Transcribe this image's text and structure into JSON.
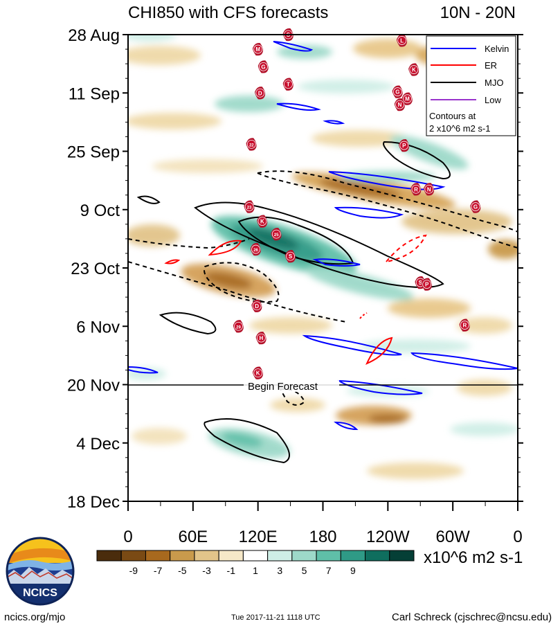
{
  "header": {
    "title": "CHI850 with CFS forecasts",
    "region": "10N - 20N"
  },
  "chart_data": {
    "type": "heatmap",
    "title": "CHI850 with CFS forecasts",
    "subtitle": "10N - 20N",
    "x_ticks": [
      "0",
      "60E",
      "120E",
      "180",
      "120W",
      "60W",
      "0"
    ],
    "x_tick_lon": [
      0,
      60,
      120,
      180,
      240,
      300,
      360
    ],
    "y_ticks": [
      "28 Aug",
      "11 Sep",
      "25 Sep",
      "9 Oct",
      "23 Oct",
      "6 Nov",
      "20 Nov",
      "4 Dec",
      "18 Dec"
    ],
    "y_range": [
      "28 Aug",
      "18 Dec"
    ],
    "x_range": [
      0,
      360
    ],
    "forecast_start": "20 Nov",
    "forecast_label": "Begin Forecast",
    "colorbar": {
      "labels": [
        "-9",
        "-7",
        "-5",
        "-3",
        "-1",
        "1",
        "3",
        "5",
        "7",
        "9"
      ],
      "colors": [
        "#4a2c0c",
        "#7a4a14",
        "#a8691e",
        "#c99a4c",
        "#e2c48a",
        "#f6e8c8",
        "#ffffff",
        "#cfeee6",
        "#9dd9c9",
        "#5fbfa8",
        "#2f9a86",
        "#0f6e5e",
        "#053f36"
      ],
      "units": "x10^6 m2 s-1"
    },
    "legend": {
      "placement": "top-right",
      "entries": [
        {
          "name": "Kelvin",
          "color": "#0000ff"
        },
        {
          "name": "ER",
          "color": "#ff0000"
        },
        {
          "name": "MJO",
          "color": "#000000"
        },
        {
          "name": "Low",
          "color": "#9933cc"
        }
      ],
      "note_lines": [
        "Contours at",
        "2 x10^6 m2 s-1"
      ]
    },
    "storm_markers": [
      {
        "label": "S",
        "lon": 148,
        "date_index": 0.0
      },
      {
        "label": "L",
        "lon": 253,
        "date_index": 0.1
      },
      {
        "label": "M",
        "lon": 120,
        "date_index": 0.25
      },
      {
        "label": "K",
        "lon": 264,
        "date_index": 0.6
      },
      {
        "label": "G",
        "lon": 125,
        "date_index": 0.55
      },
      {
        "label": "T",
        "lon": 148,
        "date_index": 0.85
      },
      {
        "label": "D",
        "lon": 122,
        "date_index": 1.0
      },
      {
        "label": "G",
        "lon": 249,
        "date_index": 0.98
      },
      {
        "label": "M",
        "lon": 258,
        "date_index": 1.1
      },
      {
        "label": "N",
        "lon": 251,
        "date_index": 1.2
      },
      {
        "label": "22",
        "lon": 114,
        "date_index": 1.88
      },
      {
        "label": "P",
        "lon": 255,
        "date_index": 1.9
      },
      {
        "label": "R",
        "lon": 266,
        "date_index": 2.65
      },
      {
        "label": "N",
        "lon": 278,
        "date_index": 2.65
      },
      {
        "label": "23",
        "lon": 112,
        "date_index": 2.95
      },
      {
        "label": "K",
        "lon": 124,
        "date_index": 3.2
      },
      {
        "label": "25",
        "lon": 137,
        "date_index": 3.42
      },
      {
        "label": "26",
        "lon": 118,
        "date_index": 3.68
      },
      {
        "label": "S",
        "lon": 150,
        "date_index": 3.8
      },
      {
        "label": "G",
        "lon": 321,
        "date_index": 2.95
      },
      {
        "label": "S",
        "lon": 270,
        "date_index": 4.25
      },
      {
        "label": "P",
        "lon": 276,
        "date_index": 4.28
      },
      {
        "label": "D",
        "lon": 119,
        "date_index": 4.65
      },
      {
        "label": "29",
        "lon": 102,
        "date_index": 5.0
      },
      {
        "label": "R",
        "lon": 311,
        "date_index": 4.98
      },
      {
        "label": "H",
        "lon": 123,
        "date_index": 5.2
      },
      {
        "label": "K",
        "lon": 120,
        "date_index": 5.8
      }
    ]
  },
  "footer": {
    "logo_text": "NCICS",
    "website": "ncics.org/mjo",
    "timestamp": "Tue 2017-11-21 1118 UTC",
    "author": "Carl Schreck (cjschrec@ncsu.edu)"
  }
}
